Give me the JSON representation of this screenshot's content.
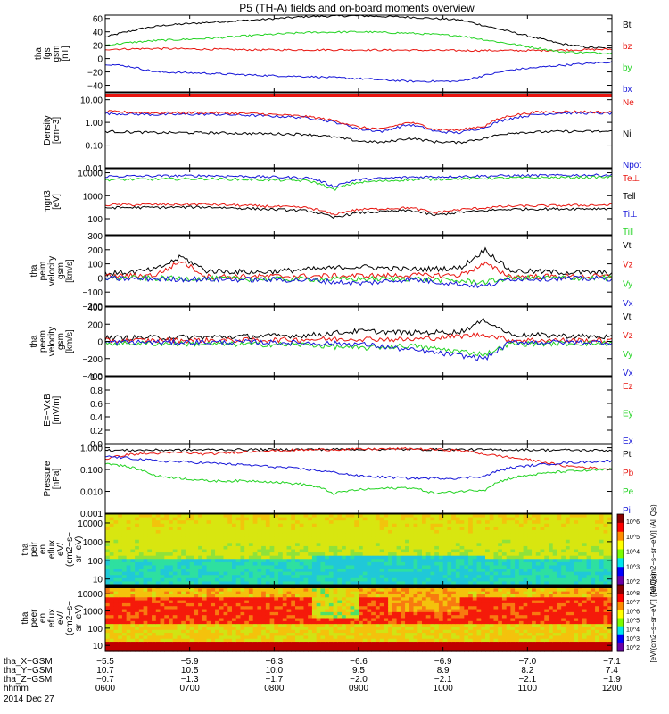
{
  "title": "P5 (TH-A) fields and on-board moments overview",
  "date": "2014 Dec 27",
  "colors": {
    "black": "#000000",
    "red": "#e8150f",
    "green": "#22d322",
    "blue": "#1515d8"
  },
  "chart_data": [
    {
      "type": "line",
      "id": "fgs",
      "ylabel": [
        "tha",
        "fgs",
        "gsm",
        "[nT]"
      ],
      "scale": "linear",
      "ylim": [
        -50,
        65
      ],
      "ticks": [
        {
          "v": 60,
          "label": "60"
        },
        {
          "v": 40,
          "label": "40"
        },
        {
          "v": 20,
          "label": "20"
        },
        {
          "v": 0,
          "label": "0"
        },
        {
          "v": -20,
          "label": "−20"
        },
        {
          "v": -40,
          "label": "−40"
        }
      ],
      "legend": [
        {
          "name": "Bt",
          "color": "black"
        },
        {
          "name": "bz",
          "color": "red"
        },
        {
          "name": "by",
          "color": "green"
        },
        {
          "name": "bx",
          "color": "blue"
        }
      ],
      "series": [
        {
          "name": "Bt",
          "color": "black",
          "x": [
            0,
            0.03,
            0.08,
            0.12,
            0.2,
            0.3,
            0.4,
            0.5,
            0.6,
            0.7,
            0.8,
            0.9,
            0.95,
            1
          ],
          "y": [
            32,
            38,
            46,
            50,
            54,
            58,
            63,
            64,
            62,
            58,
            40,
            22,
            17,
            15
          ]
        },
        {
          "name": "bz",
          "color": "red",
          "x": [
            0,
            0.1,
            0.3,
            0.5,
            0.7,
            0.85,
            0.93,
            1
          ],
          "y": [
            14,
            15,
            13,
            13,
            12,
            12,
            13,
            14
          ]
        },
        {
          "name": "by",
          "color": "green",
          "x": [
            0,
            0.05,
            0.1,
            0.2,
            0.3,
            0.4,
            0.5,
            0.6,
            0.7,
            0.8,
            0.9,
            1
          ],
          "y": [
            20,
            24,
            27,
            30,
            35,
            39,
            40,
            38,
            34,
            22,
            10,
            8
          ]
        },
        {
          "name": "bx",
          "color": "blue",
          "x": [
            0,
            0.05,
            0.1,
            0.2,
            0.3,
            0.4,
            0.5,
            0.6,
            0.7,
            0.75,
            0.8,
            0.9,
            1
          ],
          "y": [
            -8,
            -12,
            -20,
            -22,
            -25,
            -27,
            -30,
            -34,
            -34,
            -25,
            -17,
            -10,
            -5
          ]
        }
      ]
    },
    {
      "type": "line",
      "id": "density",
      "ylabel": [
        "Density",
        "[cm−3]"
      ],
      "scale": "log",
      "ylim": [
        0.01,
        20
      ],
      "ticks": [
        {
          "v": 10,
          "label": "10.00"
        },
        {
          "v": 1,
          "label": "1.00"
        },
        {
          "v": 0.1,
          "label": "0.10"
        },
        {
          "v": 0.01,
          "label": "0.01"
        }
      ],
      "legend": [
        {
          "name": "Ne",
          "color": "red"
        },
        {
          "name": "Ni",
          "color": "black"
        },
        {
          "name": "Npot",
          "color": "blue"
        }
      ],
      "series": [
        {
          "name": "Npot",
          "color": "blue",
          "x": [
            0,
            0.1,
            0.2,
            0.3,
            0.4,
            0.5,
            0.55,
            0.6,
            0.65,
            0.7,
            0.75,
            0.8,
            0.85,
            0.9,
            1
          ],
          "y": [
            2.5,
            2.2,
            2.3,
            2,
            1.6,
            0.5,
            0.4,
            0.8,
            0.4,
            0.35,
            0.6,
            1.5,
            2.2,
            2.6,
            2.5
          ]
        },
        {
          "name": "Ne",
          "color": "red",
          "x": [
            0,
            0.1,
            0.2,
            0.3,
            0.4,
            0.5,
            0.55,
            0.6,
            0.65,
            0.7,
            0.75,
            0.8,
            0.85,
            0.9,
            1
          ],
          "y": [
            3,
            2.6,
            2.7,
            2.4,
            1.8,
            0.6,
            0.5,
            1,
            0.5,
            0.45,
            0.7,
            2,
            2.8,
            3,
            2.8
          ]
        },
        {
          "name": "Ni",
          "color": "black",
          "x": [
            0,
            0.1,
            0.2,
            0.3,
            0.4,
            0.5,
            0.55,
            0.6,
            0.65,
            0.7,
            0.75,
            0.8,
            0.9,
            1
          ],
          "y": [
            0.4,
            0.35,
            0.35,
            0.32,
            0.3,
            0.15,
            0.13,
            0.2,
            0.14,
            0.13,
            0.2,
            0.35,
            0.4,
            0.4
          ]
        }
      ]
    },
    {
      "type": "line",
      "id": "temp",
      "ylabel": [
        "mgrt3",
        "[eV]"
      ],
      "scale": "log",
      "ylim": [
        20,
        15000
      ],
      "ticks": [
        {
          "v": 10000,
          "label": "10000"
        },
        {
          "v": 1000,
          "label": "1000"
        },
        {
          "v": 100,
          "label": "100"
        }
      ],
      "legend": [
        {
          "name": "Te⊥",
          "color": "red"
        },
        {
          "name": "Te‖",
          "color": "black"
        },
        {
          "name": "Ti⊥",
          "color": "blue"
        },
        {
          "name": "Ti‖",
          "color": "green"
        }
      ],
      "series": [
        {
          "name": "Ti⊥",
          "color": "blue",
          "x": [
            0,
            0.2,
            0.4,
            0.45,
            0.5,
            0.6,
            0.8,
            1
          ],
          "y": [
            7000,
            7500,
            6000,
            2500,
            5000,
            6500,
            7500,
            8000
          ]
        },
        {
          "name": "Ti‖",
          "color": "green",
          "x": [
            0,
            0.2,
            0.4,
            0.45,
            0.5,
            0.6,
            0.8,
            1
          ],
          "y": [
            5000,
            5500,
            4500,
            1800,
            3800,
            5000,
            6000,
            6500
          ]
        },
        {
          "name": "Te⊥",
          "color": "red",
          "x": [
            0,
            0.2,
            0.4,
            0.45,
            0.5,
            0.6,
            0.65,
            0.7,
            0.8,
            1
          ],
          "y": [
            400,
            420,
            300,
            150,
            250,
            300,
            180,
            250,
            350,
            400
          ]
        },
        {
          "name": "Te‖",
          "color": "black",
          "x": [
            0,
            0.2,
            0.4,
            0.45,
            0.5,
            0.6,
            0.65,
            0.7,
            0.8,
            1
          ],
          "y": [
            300,
            320,
            220,
            110,
            180,
            230,
            140,
            190,
            260,
            280
          ]
        }
      ]
    },
    {
      "type": "line",
      "id": "peim",
      "ylabel": [
        "tha",
        "peim",
        "velocity",
        "gsm",
        "[km/s]"
      ],
      "scale": "linear",
      "ylim": [
        -200,
        300
      ],
      "ticks": [
        {
          "v": 300,
          "label": "300"
        },
        {
          "v": 200,
          "label": "200"
        },
        {
          "v": 100,
          "label": "100"
        },
        {
          "v": 0,
          "label": "0"
        },
        {
          "v": -100,
          "label": "−100"
        },
        {
          "v": -200,
          "label": "−200"
        }
      ],
      "legend": [
        {
          "name": "Vt",
          "color": "black"
        },
        {
          "name": "Vz",
          "color": "red"
        },
        {
          "name": "Vy",
          "color": "green"
        },
        {
          "name": "Vx",
          "color": "blue"
        }
      ],
      "series": [
        {
          "name": "Vt",
          "color": "black",
          "x": [
            0,
            0.05,
            0.1,
            0.15,
            0.2,
            0.3,
            0.4,
            0.5,
            0.6,
            0.7,
            0.75,
            0.8,
            0.9,
            1
          ],
          "y": [
            30,
            40,
            60,
            150,
            50,
            40,
            60,
            80,
            60,
            70,
            200,
            50,
            40,
            35
          ]
        },
        {
          "name": "Vz",
          "color": "red",
          "x": [
            0,
            0.1,
            0.15,
            0.2,
            0.3,
            0.5,
            0.7,
            0.75,
            0.8,
            1
          ],
          "y": [
            10,
            20,
            120,
            10,
            10,
            15,
            20,
            100,
            10,
            10
          ]
        },
        {
          "name": "Vy",
          "color": "green",
          "x": [
            0,
            0.2,
            0.4,
            0.6,
            0.75,
            0.8,
            1
          ],
          "y": [
            0,
            -5,
            -10,
            -5,
            -30,
            0,
            0
          ]
        },
        {
          "name": "Vx",
          "color": "blue",
          "x": [
            0,
            0.2,
            0.4,
            0.5,
            0.6,
            0.75,
            0.8,
            1
          ],
          "y": [
            -5,
            -10,
            -15,
            -40,
            -10,
            -60,
            -5,
            -5
          ]
        }
      ]
    },
    {
      "type": "line",
      "id": "peem",
      "ylabel": [
        "tha",
        "peem",
        "velocity",
        "gsm",
        "[km/s]"
      ],
      "scale": "linear",
      "ylim": [
        -400,
        400
      ],
      "ticks": [
        {
          "v": 400,
          "label": "400"
        },
        {
          "v": 200,
          "label": "200"
        },
        {
          "v": 0,
          "label": "0"
        },
        {
          "v": -200,
          "label": "−200"
        },
        {
          "v": -400,
          "label": "−400"
        }
      ],
      "legend": [
        {
          "name": "Vt",
          "color": "black"
        },
        {
          "name": "Vz",
          "color": "red"
        },
        {
          "name": "Vy",
          "color": "green"
        },
        {
          "name": "Vx",
          "color": "blue"
        }
      ],
      "series": [
        {
          "name": "Vt",
          "color": "black",
          "x": [
            0,
            0.2,
            0.4,
            0.5,
            0.6,
            0.7,
            0.75,
            0.8,
            1
          ],
          "y": [
            40,
            50,
            70,
            120,
            100,
            110,
            250,
            80,
            50
          ]
        },
        {
          "name": "Vz",
          "color": "red",
          "x": [
            0,
            0.3,
            0.5,
            0.6,
            0.75,
            0.8,
            1
          ],
          "y": [
            10,
            15,
            30,
            20,
            80,
            15,
            10
          ]
        },
        {
          "name": "Vy",
          "color": "green",
          "x": [
            0,
            0.2,
            0.4,
            0.5,
            0.6,
            0.75,
            0.8,
            1
          ],
          "y": [
            -20,
            -30,
            -40,
            -80,
            -50,
            -150,
            -30,
            -20
          ]
        },
        {
          "name": "Vx",
          "color": "blue",
          "x": [
            0,
            0.3,
            0.5,
            0.75,
            0.8,
            1
          ],
          "y": [
            -10,
            -10,
            -30,
            -200,
            -10,
            -10
          ]
        }
      ]
    },
    {
      "type": "line",
      "id": "efield",
      "ylabel": [
        "E=−VxB",
        "[mV/m]"
      ],
      "scale": "linear",
      "ylim": [
        0,
        1
      ],
      "ticks": [
        {
          "v": 1,
          "label": "1.0"
        },
        {
          "v": 0.8,
          "label": "0.8"
        },
        {
          "v": 0.6,
          "label": "0.6"
        },
        {
          "v": 0.4,
          "label": "0.4"
        },
        {
          "v": 0.2,
          "label": "0.2"
        },
        {
          "v": 0,
          "label": "0.0"
        }
      ],
      "legend": [
        {
          "name": "Ez",
          "color": "red"
        },
        {
          "name": "Ey",
          "color": "green"
        },
        {
          "name": "Ex",
          "color": "blue"
        }
      ],
      "series": []
    },
    {
      "type": "line",
      "id": "pressure",
      "ylabel": [
        "Pressure",
        "[nPa]"
      ],
      "scale": "log",
      "ylim": [
        0.001,
        1.4
      ],
      "ticks": [
        {
          "v": 1,
          "label": "1.000"
        },
        {
          "v": 0.1,
          "label": "0.100"
        },
        {
          "v": 0.01,
          "label": "0.010"
        },
        {
          "v": 0.001,
          "label": "0.001"
        }
      ],
      "legend": [
        {
          "name": "Pt",
          "color": "black"
        },
        {
          "name": "Pb",
          "color": "red"
        },
        {
          "name": "Pe",
          "color": "green"
        },
        {
          "name": "Pi",
          "color": "blue"
        }
      ],
      "series": [
        {
          "name": "Pt",
          "color": "black",
          "x": [
            0,
            0.2,
            0.5,
            0.8,
            1
          ],
          "y": [
            0.75,
            0.8,
            0.85,
            0.8,
            0.75
          ]
        },
        {
          "name": "Pb",
          "color": "red",
          "x": [
            0,
            0.05,
            0.15,
            0.2,
            0.3,
            0.4,
            0.5,
            0.6,
            0.7,
            0.75,
            0.8,
            0.9,
            1
          ],
          "y": [
            0.3,
            0.5,
            0.6,
            0.5,
            0.7,
            0.8,
            0.85,
            0.9,
            0.75,
            0.5,
            0.35,
            0.15,
            0.1
          ]
        },
        {
          "name": "Pe",
          "color": "green",
          "x": [
            0,
            0.1,
            0.2,
            0.3,
            0.4,
            0.45,
            0.5,
            0.6,
            0.65,
            0.7,
            0.75,
            0.8,
            0.9,
            1
          ],
          "y": [
            0.2,
            0.05,
            0.03,
            0.03,
            0.02,
            0.008,
            0.012,
            0.015,
            0.008,
            0.01,
            0.012,
            0.04,
            0.08,
            0.1
          ]
        },
        {
          "name": "Pi",
          "color": "blue",
          "x": [
            0,
            0.1,
            0.2,
            0.3,
            0.4,
            0.5,
            0.6,
            0.7,
            0.75,
            0.8,
            0.9,
            1
          ],
          "y": [
            0.4,
            0.25,
            0.2,
            0.15,
            0.1,
            0.05,
            0.04,
            0.04,
            0.05,
            0.12,
            0.2,
            0.25
          ]
        }
      ]
    },
    {
      "type": "heatmap",
      "id": "peir",
      "ylabel": [
        "tha",
        "peir",
        "en",
        "eflux",
        "eV/",
        "(cm2−s−",
        "sr−eV)"
      ],
      "scale": "log",
      "ylim": [
        5,
        30000
      ],
      "ticks": [
        {
          "v": 10000,
          "label": "10000"
        },
        {
          "v": 1000,
          "label": "1000"
        },
        {
          "v": 100,
          "label": "100"
        },
        {
          "v": 10,
          "label": "10"
        }
      ],
      "colorbar_label": "[eV/(cm2−s−sr−eV)] (All Qs)",
      "colorbar_ticks": [
        "10^6",
        "10^5",
        "10^4",
        "10^3",
        "10^2"
      ]
    },
    {
      "type": "heatmap",
      "id": "peer",
      "ylabel": [
        "tha",
        "peer",
        "en",
        "eflux",
        "eV/",
        "(cm2−s−",
        "sr−eV)"
      ],
      "scale": "log",
      "ylim": [
        5,
        30000
      ],
      "ticks": [
        {
          "v": 10000,
          "label": "10000"
        },
        {
          "v": 1000,
          "label": "1000"
        },
        {
          "v": 100,
          "label": "100"
        },
        {
          "v": 10,
          "label": "10"
        }
      ],
      "colorbar_label": "[eV/(cm2−s−sr−eV)] (All Qs)",
      "colorbar_ticks": [
        "10^8",
        "10^7",
        "10^6",
        "10^5",
        "10^4",
        "10^3",
        "10^2"
      ]
    }
  ],
  "x_axis": {
    "rows": [
      {
        "label": "tha_X−GSM",
        "values": [
          "−5.5",
          "−5.9",
          "−6.3",
          "−6.6",
          "−6.9",
          "−7.0",
          "−7.1"
        ]
      },
      {
        "label": "tha_Y−GSM",
        "values": [
          "10.7",
          "10.5",
          "10.0",
          "9.5",
          "8.9",
          "8.2",
          "7.4"
        ]
      },
      {
        "label": "tha_Z−GSM",
        "values": [
          "−0.7",
          "−1.3",
          "−1.7",
          "−2.0",
          "−2.1",
          "−2.1",
          "−1.9"
        ]
      },
      {
        "label": "hhmm",
        "values": [
          "0600",
          "0700",
          "0800",
          "0900",
          "1000",
          "1100",
          "1200"
        ]
      }
    ]
  }
}
